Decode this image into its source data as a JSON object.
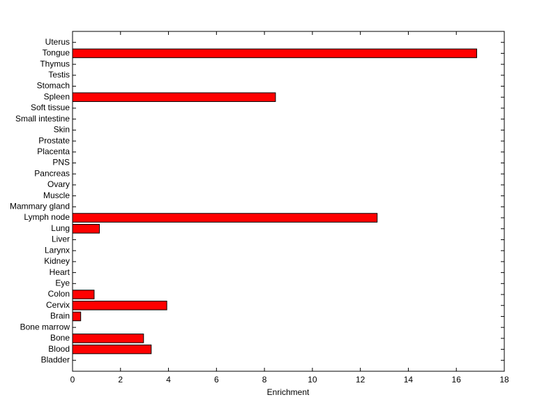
{
  "chart_data": {
    "type": "barh",
    "xlabel": "Enrichment",
    "categories": [
      "Bladder",
      "Blood",
      "Bone",
      "Bone marrow",
      "Brain",
      "Cervix",
      "Colon",
      "Eye",
      "Heart",
      "Kidney",
      "Larynx",
      "Liver",
      "Lung",
      "Lymph node",
      "Mammary gland",
      "Muscle",
      "Ovary",
      "Pancreas",
      "PNS",
      "Placenta",
      "Prostate",
      "Skin",
      "Small intestine",
      "Soft tissue",
      "Spleen",
      "Stomach",
      "Testis",
      "Thymus",
      "Tongue",
      "Uterus"
    ],
    "values": [
      0,
      3.28,
      2.96,
      0,
      0.34,
      3.93,
      0.9,
      0,
      0,
      0,
      0,
      0,
      1.12,
      12.7,
      0,
      0,
      0,
      0,
      0,
      0,
      0,
      0,
      0,
      0,
      8.46,
      0,
      0,
      0,
      16.85,
      0
    ],
    "color": "#ff0000",
    "xlim": [
      0,
      18
    ],
    "xticks": [
      0,
      2,
      4,
      6,
      8,
      10,
      12,
      14,
      16,
      18
    ]
  }
}
